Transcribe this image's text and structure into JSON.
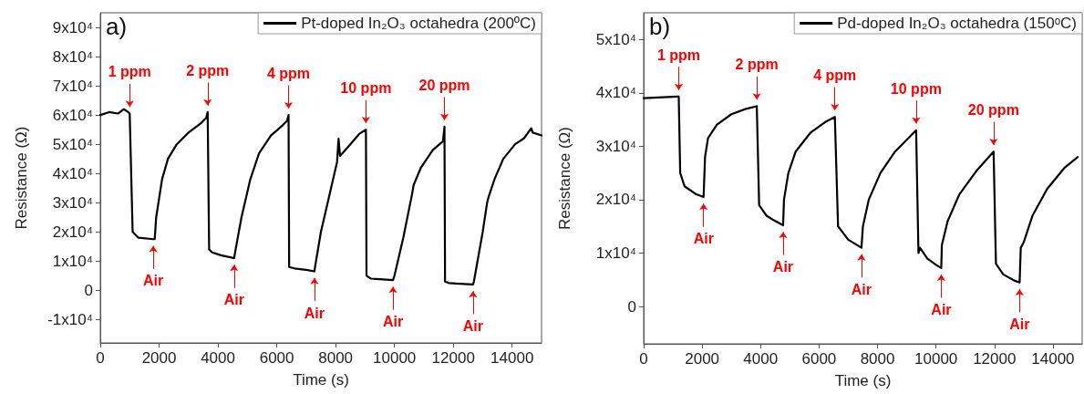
{
  "chart_data": [
    {
      "type": "line",
      "xlabel": "Time (s)",
      "ylabel": "Resistance (Ω)",
      "xlim": [
        0,
        15000
      ],
      "ylim": [
        -18000,
        95000
      ],
      "xticks": [
        0,
        2000,
        4000,
        6000,
        8000,
        10000,
        12000,
        14000
      ],
      "yticks": [
        {
          "value": -10000,
          "label": "-1x10⁴"
        },
        0,
        {
          "value": 10000,
          "label": "1x10⁴"
        },
        {
          "value": 20000,
          "label": "2x10⁴"
        },
        {
          "value": 30000,
          "label": "3x10⁴"
        },
        {
          "value": 40000,
          "label": "4x10⁴"
        },
        {
          "value": 50000,
          "label": "5x10⁴"
        },
        {
          "value": 60000,
          "label": "6x10⁴"
        },
        {
          "value": 70000,
          "label": "7x10⁴"
        },
        {
          "value": 80000,
          "label": "8x10⁴"
        },
        {
          "value": 90000,
          "label": "9x10⁴"
        }
      ],
      "legend": "top right",
      "marker": "none",
      "line_style": "solid",
      "series": [
        {
          "name": "Pt-doped In₂O₃ octahedra (200ºC)",
          "color": "#000000",
          "x": [
            0,
            300,
            600,
            800,
            950,
            1000,
            1100,
            1300,
            1800,
            1850,
            1900,
            2100,
            2300,
            2600,
            3000,
            3400,
            3600,
            3650,
            3700,
            3800,
            4100,
            4550,
            4600,
            4800,
            5100,
            5400,
            5800,
            6200,
            6350,
            6400,
            6420,
            6600,
            7000,
            7280,
            7300,
            7500,
            7800,
            8050,
            8100,
            8150,
            8500,
            8800,
            9030,
            9050,
            9200,
            9500,
            9950,
            10000,
            10300,
            10600,
            10650,
            10900,
            11300,
            11650,
            11700,
            11720,
            11850,
            12100,
            12670,
            12700,
            13000,
            13150,
            13200,
            13400,
            13700,
            14100,
            14400,
            14650,
            14700,
            15000
          ],
          "values": [
            60000,
            61000,
            60500,
            62000,
            61000,
            60500,
            20000,
            18000,
            17500,
            17500,
            25000,
            38000,
            45000,
            50000,
            54000,
            57000,
            59000,
            61000,
            14000,
            13000,
            12000,
            11000,
            14000,
            25000,
            38000,
            47000,
            53000,
            56500,
            58000,
            60000,
            8000,
            7500,
            7000,
            6500,
            8000,
            20000,
            33000,
            44000,
            52000,
            46000,
            50000,
            53500,
            55000,
            5000,
            4000,
            3800,
            3500,
            5000,
            18000,
            33000,
            36000,
            42000,
            48000,
            51000,
            56000,
            3000,
            2500,
            2300,
            2000,
            3000,
            20000,
            30000,
            32000,
            38000,
            45000,
            50000,
            52000,
            55500,
            54000,
            53000
          ]
        }
      ],
      "annotations": [
        "a)",
        {
          "text": "1 ppm",
          "x": 1000,
          "y": 60500
        },
        {
          "text": "2 ppm",
          "x": 3650,
          "y": 61000
        },
        {
          "text": "4 ppm",
          "x": 6400,
          "y": 60000
        },
        {
          "text": "10 ppm",
          "x": 9030,
          "y": 55000
        },
        {
          "text": "20 ppm",
          "x": 11700,
          "y": 56000
        },
        {
          "text": "Air",
          "x": 1800,
          "y": 17500
        },
        {
          "text": "Air",
          "x": 4550,
          "y": 11000
        },
        {
          "text": "Air",
          "x": 7280,
          "y": 6500
        },
        {
          "text": "Air",
          "x": 9950,
          "y": 3500
        },
        {
          "text": "Air",
          "x": 12670,
          "y": 2000
        }
      ]
    },
    {
      "type": "line",
      "xlabel": "Time (s)",
      "ylabel": "Resistance (Ω)",
      "xlim": [
        0,
        15000
      ],
      "ylim": [
        -7000,
        55000
      ],
      "xticks": [
        0,
        2000,
        4000,
        6000,
        8000,
        10000,
        12000,
        14000
      ],
      "yticks": [
        0,
        {
          "value": 10000,
          "label": "1x10⁴"
        },
        {
          "value": 20000,
          "label": "2x10⁴"
        },
        {
          "value": 30000,
          "label": "3x10⁴"
        },
        {
          "value": 40000,
          "label": "4x10⁴"
        },
        {
          "value": 50000,
          "label": "5x10⁴"
        }
      ],
      "legend": "top right",
      "marker": "none",
      "line_style": "solid",
      "series": [
        {
          "name": "Pd-doped In₂O₃ octahedra (150ᵒC)",
          "color": "#000000",
          "x": [
            0,
            1150,
            1200,
            1250,
            1400,
            1800,
            2050,
            2100,
            2200,
            2500,
            3000,
            3500,
            3870,
            3950,
            4200,
            4500,
            4770,
            4800,
            4950,
            5200,
            5700,
            6200,
            6540,
            6650,
            7000,
            7450,
            7500,
            7700,
            8100,
            8600,
            9320,
            9400,
            9450,
            9700,
            10000,
            10180,
            10200,
            10400,
            10800,
            11400,
            11970,
            12050,
            12300,
            12700,
            12860,
            12900,
            13000,
            13300,
            13800,
            14400,
            14850
          ],
          "values": [
            39000,
            39300,
            39300,
            25000,
            22500,
            21000,
            20500,
            28000,
            31500,
            34000,
            36000,
            37000,
            37500,
            19000,
            17000,
            16000,
            15200,
            20000,
            25000,
            29000,
            32500,
            34500,
            35500,
            15000,
            12500,
            11000,
            15000,
            20000,
            25000,
            29000,
            33000,
            10000,
            11000,
            9000,
            7800,
            7200,
            11500,
            16000,
            21000,
            25500,
            29000,
            8000,
            6000,
            4800,
            4500,
            11000,
            12000,
            17000,
            22000,
            26000,
            28000
          ]
        }
      ],
      "annotations": [
        "b)",
        {
          "text": "1 ppm",
          "x": 1200,
          "y": 39300
        },
        {
          "text": "2 ppm",
          "x": 3870,
          "y": 37500
        },
        {
          "text": "4 ppm",
          "x": 6540,
          "y": 35500
        },
        {
          "text": "10 ppm",
          "x": 9320,
          "y": 33000
        },
        {
          "text": "20 ppm",
          "x": 11970,
          "y": 29000
        },
        {
          "text": "Air",
          "x": 2050,
          "y": 20500
        },
        {
          "text": "Air",
          "x": 4770,
          "y": 15200
        },
        {
          "text": "Air",
          "x": 7450,
          "y": 11000
        },
        {
          "text": "Air",
          "x": 10180,
          "y": 7200
        },
        {
          "text": "Air",
          "x": 12860,
          "y": 4500
        }
      ]
    }
  ]
}
